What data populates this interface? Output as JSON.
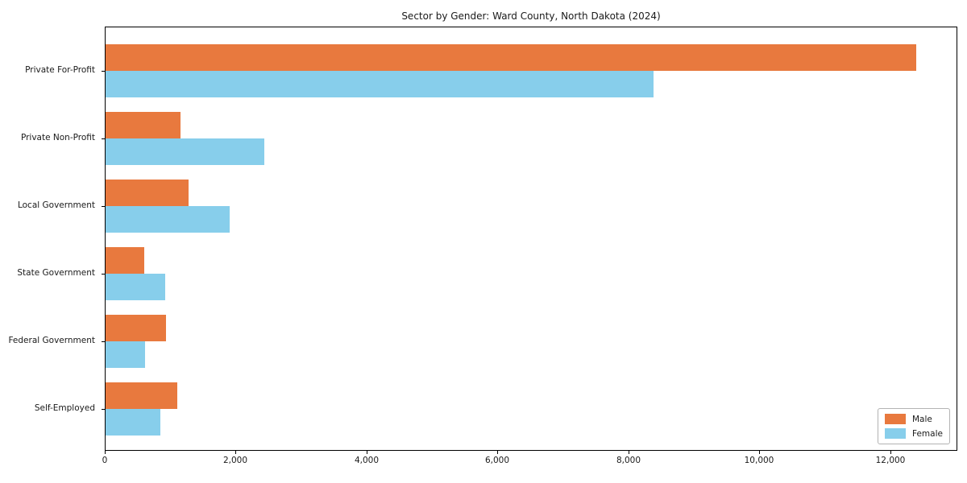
{
  "chart_data": {
    "type": "bar",
    "orientation": "horizontal",
    "title": "Sector by Gender: Ward County, North Dakota (2024)",
    "categories": [
      "Private For-Profit",
      "Private Non-Profit",
      "Local Government",
      "State Government",
      "Federal Government",
      "Self-Employed"
    ],
    "series": [
      {
        "name": "Male",
        "color": "#E8793E",
        "values": [
          12380,
          1150,
          1270,
          590,
          920,
          1100
        ]
      },
      {
        "name": "Female",
        "color": "#87CEEB",
        "values": [
          8370,
          2430,
          1900,
          910,
          600,
          840
        ]
      }
    ],
    "xlim": [
      0,
      13000
    ],
    "xticks": [
      0,
      2000,
      4000,
      6000,
      8000,
      10000,
      12000
    ],
    "xtick_labels": [
      "0",
      "2,000",
      "4,000",
      "6,000",
      "8,000",
      "10,000",
      "12,000"
    ],
    "ylabel": "",
    "xlabel": "",
    "grid": false,
    "legend": {
      "position": "lower right"
    },
    "axis_color": "#000000"
  }
}
